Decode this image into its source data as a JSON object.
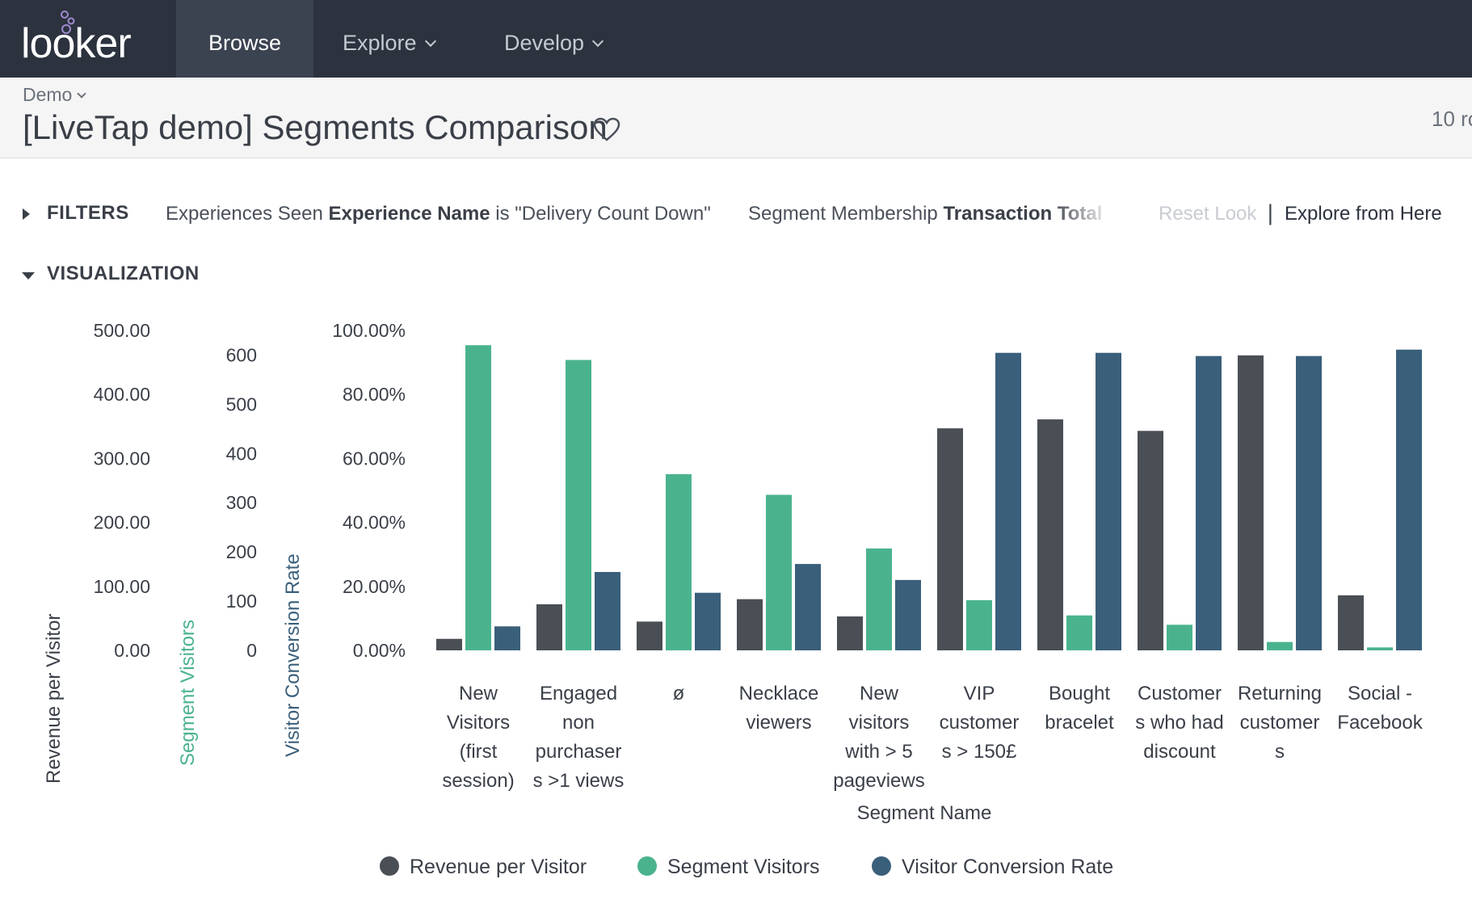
{
  "brand": {
    "logo_text": "looker"
  },
  "nav": {
    "items": [
      {
        "label": "Browse",
        "active": true
      },
      {
        "label": "Explore",
        "active": false
      },
      {
        "label": "Develop",
        "active": false
      }
    ]
  },
  "header": {
    "breadcrumb": "Demo",
    "title": "[LiveTap demo] Segments Comparison",
    "row_count": "10 ro"
  },
  "filters": {
    "label": "FILTERS",
    "filter1_prefix": "Experiences Seen",
    "filter1_field": "Experience Name",
    "filter1_rest": "is \"Delivery Count Down\"",
    "filter2_prefix": "Segment Membership",
    "filter2_field": "Transaction Total",
    "reset_label": "Reset Look",
    "separator": "|",
    "explore_label": "Explore from Here"
  },
  "visualization": {
    "label": "VISUALIZATION"
  },
  "colors": {
    "revenue": "#4a4e55",
    "visitors": "#4ab38e",
    "conversion": "#3a5f7b"
  },
  "chart_data": {
    "type": "bar",
    "xlabel": "Segment Name",
    "categories": [
      [
        "New",
        "Visitors",
        "(first",
        "session)"
      ],
      [
        "Engaged",
        "non",
        "purchaser",
        "s >1 views"
      ],
      [
        "ø"
      ],
      [
        "Necklace",
        "viewers"
      ],
      [
        "New",
        "visitors",
        "with > 5",
        "pageviews"
      ],
      [
        "VIP",
        "customer",
        "s > 150£"
      ],
      [
        "Bought",
        "bracelet"
      ],
      [
        "Customer",
        "s who had",
        "discount"
      ],
      [
        "Returning",
        "customer",
        "s"
      ],
      [
        "Social -",
        "Facebook"
      ]
    ],
    "axes": [
      {
        "title": "Revenue per Visitor",
        "ticks": [
          "0.00",
          "100.00",
          "200.00",
          "300.00",
          "400.00",
          "500.00"
        ],
        "ylim": [
          0,
          500
        ]
      },
      {
        "title": "Segment Visitors",
        "ticks": [
          "0",
          "100",
          "200",
          "300",
          "400",
          "500",
          "600"
        ],
        "ylim": [
          0,
          650
        ]
      },
      {
        "title": "Visitor Conversion Rate",
        "ticks": [
          "0.00%",
          "20.00%",
          "40.00%",
          "60.00%",
          "80.00%",
          "100.00%"
        ],
        "ylim": [
          0,
          100
        ]
      }
    ],
    "series": [
      {
        "name": "Revenue per Visitor",
        "axis": 0,
        "values": [
          18,
          72,
          45,
          80,
          53,
          347,
          361,
          343,
          461,
          86
        ]
      },
      {
        "name": "Segment Visitors",
        "axis": 1,
        "values": [
          620,
          590,
          358,
          316,
          207,
          102,
          71,
          52,
          17,
          6
        ]
      },
      {
        "name": "Visitor Conversion Rate",
        "axis": 2,
        "values": [
          7.5,
          24.5,
          18,
          27,
          22,
          93,
          93,
          92,
          92,
          94
        ]
      }
    ]
  }
}
